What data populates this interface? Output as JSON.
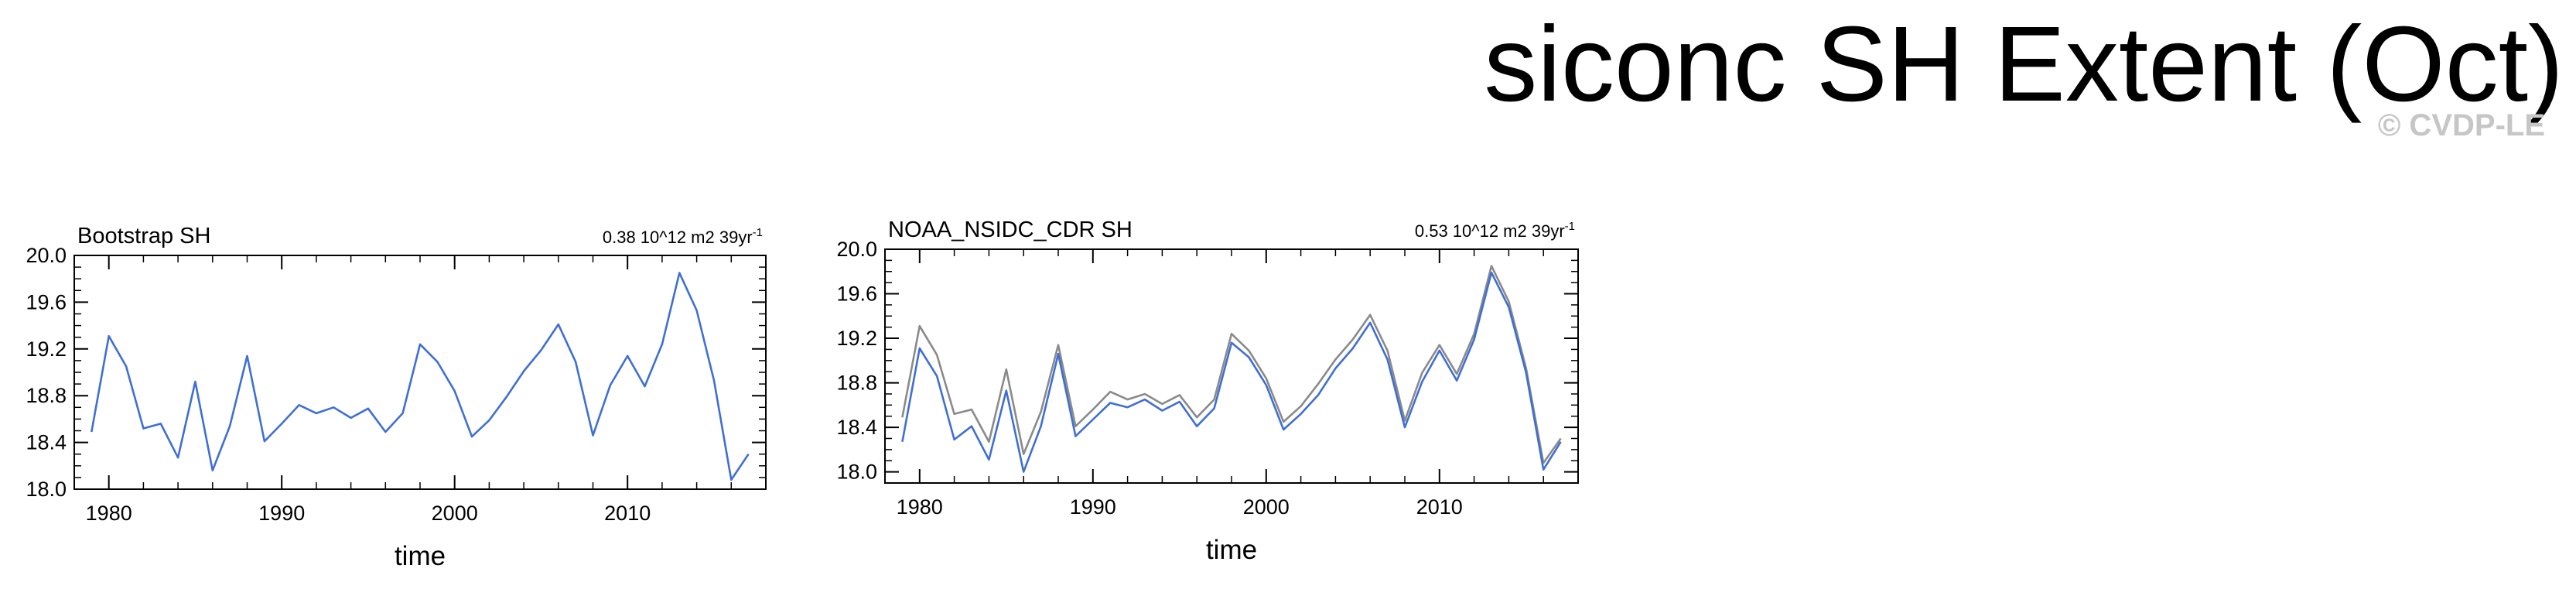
{
  "figure": {
    "title": "siconc SH Extent (Oct)",
    "watermark": "© CVDP-LE"
  },
  "colors": {
    "series_blue": "#3f6fd4",
    "series_gray": "#8a8a8a"
  },
  "chart_data": [
    {
      "type": "line",
      "title": "Bootstrap SH",
      "right_annotation": "0.38 10^12 m2 39yr",
      "right_annotation_superscript": "-1",
      "xlabel": "time",
      "ylabel": "",
      "xlim": [
        1978,
        2018
      ],
      "ylim": [
        18.0,
        20.0
      ],
      "x_ticks": [
        1980,
        1990,
        2000,
        2010
      ],
      "y_ticks": [
        18.0,
        18.4,
        18.8,
        19.2,
        19.6,
        20.0
      ],
      "y_tick_labels": [
        "18.0",
        "18.4",
        "18.8",
        "19.2",
        "19.6",
        "20.0"
      ],
      "x": [
        1979,
        1980,
        1981,
        1982,
        1983,
        1984,
        1985,
        1986,
        1987,
        1988,
        1989,
        1990,
        1991,
        1992,
        1993,
        1994,
        1995,
        1996,
        1997,
        1998,
        1999,
        2000,
        2001,
        2002,
        2003,
        2004,
        2005,
        2006,
        2007,
        2008,
        2009,
        2010,
        2011,
        2012,
        2013,
        2014,
        2015,
        2016,
        2017
      ],
      "series": [
        {
          "color": "#3f6fd4",
          "values": [
            18.49,
            19.31,
            19.05,
            18.52,
            18.56,
            18.27,
            18.92,
            18.16,
            18.54,
            19.14,
            18.41,
            18.56,
            18.72,
            18.65,
            18.7,
            18.61,
            18.69,
            18.49,
            18.65,
            19.24,
            19.09,
            18.84,
            18.45,
            18.59,
            18.79,
            19.01,
            19.19,
            19.41,
            19.09,
            18.46,
            18.89,
            19.14,
            18.88,
            19.24,
            19.85,
            19.53,
            18.93,
            18.08,
            18.3
          ]
        }
      ]
    },
    {
      "type": "line",
      "title": "NOAA_NSIDC_CDR SH",
      "right_annotation": "0.53 10^12 m2 39yr",
      "right_annotation_superscript": "-1",
      "xlabel": "time",
      "ylabel": "",
      "xlim": [
        1978,
        2018
      ],
      "ylim": [
        17.9,
        20.0
      ],
      "x_ticks": [
        1980,
        1990,
        2000,
        2010
      ],
      "y_ticks": [
        18.0,
        18.4,
        18.8,
        19.2,
        19.6,
        20.0
      ],
      "y_tick_labels": [
        "18.0",
        "18.4",
        "18.8",
        "19.2",
        "19.6",
        "20.0"
      ],
      "x": [
        1979,
        1980,
        1981,
        1982,
        1983,
        1984,
        1985,
        1986,
        1987,
        1988,
        1989,
        1990,
        1991,
        1992,
        1993,
        1994,
        1995,
        1996,
        1997,
        1998,
        1999,
        2000,
        2001,
        2002,
        2003,
        2004,
        2005,
        2006,
        2007,
        2008,
        2009,
        2010,
        2011,
        2012,
        2013,
        2014,
        2015,
        2016,
        2017
      ],
      "series": [
        {
          "color": "#8a8a8a",
          "values": [
            18.49,
            19.31,
            19.05,
            18.52,
            18.56,
            18.27,
            18.92,
            18.16,
            18.54,
            19.14,
            18.41,
            18.56,
            18.72,
            18.65,
            18.7,
            18.61,
            18.69,
            18.49,
            18.65,
            19.24,
            19.09,
            18.84,
            18.45,
            18.59,
            18.79,
            19.01,
            19.19,
            19.41,
            19.09,
            18.46,
            18.89,
            19.14,
            18.88,
            19.24,
            19.85,
            19.53,
            18.93,
            18.08,
            18.3
          ]
        },
        {
          "color": "#3f6fd4",
          "values": [
            18.27,
            19.11,
            18.86,
            18.29,
            18.41,
            18.11,
            18.73,
            18.0,
            18.41,
            19.06,
            18.32,
            18.47,
            18.62,
            18.58,
            18.65,
            18.55,
            18.63,
            18.41,
            18.57,
            19.16,
            19.03,
            18.78,
            18.38,
            18.52,
            18.69,
            18.93,
            19.11,
            19.34,
            19.01,
            18.4,
            18.81,
            19.09,
            18.82,
            19.19,
            19.79,
            19.48,
            18.89,
            18.02,
            18.27
          ]
        }
      ]
    }
  ]
}
